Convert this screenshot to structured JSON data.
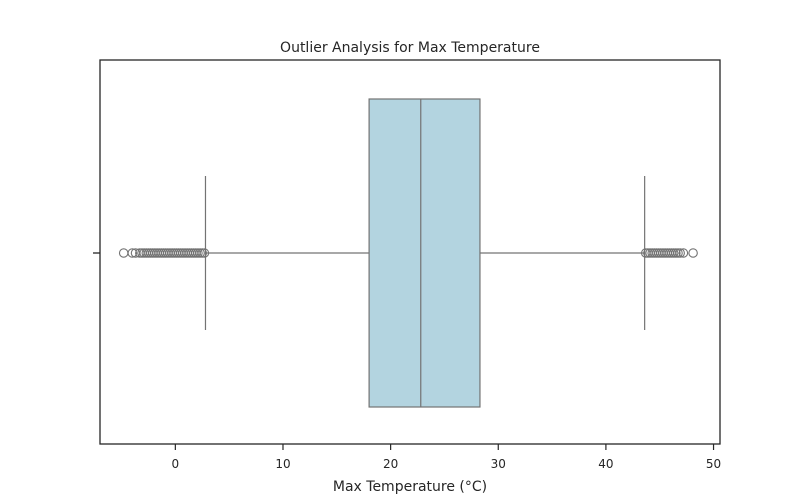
{
  "chart_data": {
    "type": "boxplot",
    "orientation": "horizontal",
    "title": "Outlier Analysis for Max Temperature",
    "xlabel": "Max Temperature (°C)",
    "ylabel": "",
    "xlim": [
      -7.0,
      50.6
    ],
    "xticks": [
      0,
      10,
      20,
      30,
      40,
      50
    ],
    "grid": false,
    "box": {
      "q1": 18.0,
      "median": 22.8,
      "q3": 28.3,
      "whisker_low": 2.8,
      "whisker_high": 43.6,
      "fill_color": "#b3d4e0",
      "line_color": "#737373"
    },
    "outliers_low": [
      -4.8,
      -4.0,
      -3.7,
      -3.3,
      -3.1,
      -2.9,
      -2.7,
      -2.5,
      -2.3,
      -2.1,
      -1.9,
      -1.7,
      -1.5,
      -1.3,
      -1.1,
      -0.9,
      -0.7,
      -0.5,
      -0.3,
      -0.1,
      0.1,
      0.3,
      0.5,
      0.7,
      0.9,
      1.1,
      1.3,
      1.5,
      1.7,
      1.9,
      2.1,
      2.3,
      2.5,
      2.7
    ],
    "outliers_high": [
      43.7,
      43.9,
      44.1,
      44.3,
      44.5,
      44.7,
      44.9,
      45.1,
      45.3,
      45.5,
      45.7,
      45.9,
      46.1,
      46.3,
      46.5,
      46.7,
      46.9,
      47.2,
      48.1
    ]
  }
}
